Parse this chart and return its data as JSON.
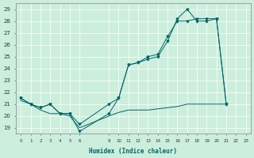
{
  "xlabel": "Humidex (Indice chaleur)",
  "bg_color": "#cceedd",
  "grid_color": "#ffffff",
  "line_color": "#006666",
  "xlim": [
    -0.5,
    23.5
  ],
  "ylim": [
    18.5,
    29.5
  ],
  "yticks": [
    19,
    20,
    21,
    22,
    23,
    24,
    25,
    26,
    27,
    28,
    29
  ],
  "xtick_positions": [
    0,
    1,
    2,
    3,
    4,
    5,
    6,
    9,
    10,
    11,
    12,
    13,
    14,
    15,
    16,
    17,
    18,
    19,
    20,
    21,
    22,
    23
  ],
  "xtick_labels": [
    "0",
    "1",
    "2",
    "3",
    "4",
    "5",
    "6",
    "9",
    "10",
    "11",
    "12",
    "13",
    "14",
    "15",
    "16",
    "17",
    "18",
    "19",
    "20",
    "21",
    "22",
    "23"
  ],
  "s1_x": [
    0,
    1,
    2,
    3,
    4,
    5,
    6,
    9,
    10,
    11,
    12,
    13,
    14,
    15,
    16,
    17,
    18,
    19,
    20,
    21
  ],
  "s1_y": [
    21.5,
    21.0,
    20.7,
    21.0,
    20.2,
    20.2,
    18.7,
    20.2,
    21.5,
    24.3,
    24.5,
    24.8,
    25.0,
    26.3,
    28.2,
    29.0,
    28.0,
    28.0,
    28.2,
    21.0
  ],
  "s2_x": [
    0,
    1,
    2,
    3,
    4,
    5,
    6,
    9,
    10,
    11,
    12,
    13,
    14,
    15,
    16,
    17,
    18,
    19,
    20,
    21
  ],
  "s2_y": [
    21.5,
    21.0,
    20.7,
    21.0,
    20.2,
    20.2,
    19.3,
    21.0,
    21.5,
    24.3,
    24.5,
    25.0,
    25.2,
    26.7,
    28.0,
    28.0,
    28.2,
    28.2,
    28.2,
    21.0
  ],
  "s3_x": [
    0,
    1,
    2,
    3,
    4,
    5,
    6,
    9,
    10,
    11,
    12,
    13,
    14,
    15,
    16,
    17,
    18,
    19,
    20,
    21
  ],
  "s3_y": [
    21.3,
    21.0,
    20.5,
    20.2,
    20.2,
    20.0,
    19.0,
    20.0,
    20.3,
    20.5,
    20.5,
    20.5,
    20.6,
    20.7,
    20.8,
    21.0,
    21.0,
    21.0,
    21.0,
    21.0
  ]
}
